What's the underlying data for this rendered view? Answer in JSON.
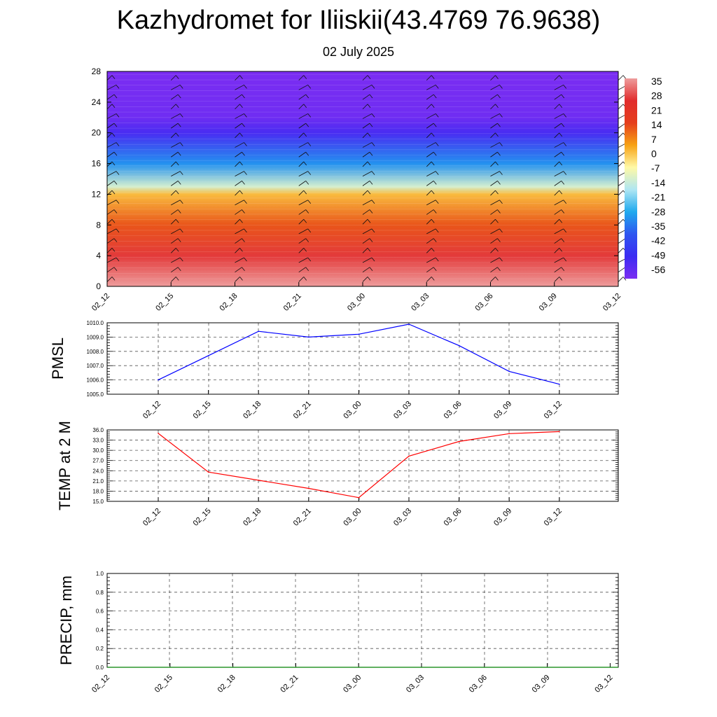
{
  "header": {
    "title": "Kazhydromet for Iliiskii(43.4769 76.9638)",
    "subtitle": "02 July 2025"
  },
  "chart_data": [
    {
      "type": "heatmap",
      "panel": "temperature-cross-section",
      "title": "",
      "ylabel": "",
      "x_ticks": [
        "02_12",
        "02_15",
        "02_18",
        "02_21",
        "03_00",
        "03_03",
        "03_06",
        "03_09",
        "03_12"
      ],
      "y_ticks": [
        0,
        4,
        8,
        12,
        16,
        20,
        24,
        28
      ],
      "ylim": [
        0,
        28
      ],
      "colorbar_labels": [
        35,
        28,
        21,
        14,
        7,
        0,
        -7,
        -14,
        -21,
        -28,
        -35,
        -42,
        -49,
        -56
      ],
      "colors": [
        "#ee9c9c",
        "#e12c2c",
        "#e53e1c",
        "#f7a214",
        "#fff9a6",
        "#aee6f3",
        "#1fa9ee",
        "#2e55f0",
        "#3b2cf2",
        "#7b2df2"
      ],
      "band_profile": [
        {
          "y": 0,
          "value": 35
        },
        {
          "y": 4,
          "value": 26
        },
        {
          "y": 8,
          "value": 12
        },
        {
          "y": 12,
          "value": 1
        },
        {
          "y": 13,
          "value": -12
        },
        {
          "y": 16,
          "value": -30
        },
        {
          "y": 20,
          "value": -50
        },
        {
          "y": 22,
          "value": -56
        },
        {
          "y": 28,
          "value": -58
        }
      ],
      "wind_barbs": true
    },
    {
      "type": "line",
      "panel": "pmsl",
      "ylabel": "PMSL",
      "x": [
        "02_12",
        "02_15",
        "02_18",
        "02_21",
        "03_00",
        "03_03",
        "03_06",
        "03_09",
        "03_12"
      ],
      "series": [
        {
          "values": [
            1006.0,
            1007.7,
            1009.4,
            1009.0,
            1009.2,
            1009.9,
            1008.4,
            1006.6,
            1005.7
          ]
        }
      ],
      "ylim": [
        1005.0,
        1010.0
      ],
      "y_ticks": [
        1005.0,
        1006.0,
        1007.0,
        1008.0,
        1009.0,
        1010.0
      ],
      "line_color": "#0000ff",
      "grid": true
    },
    {
      "type": "line",
      "panel": "temp2m",
      "ylabel": "TEMP at 2 M",
      "x": [
        "02_12",
        "02_15",
        "02_18",
        "02_21",
        "03_00",
        "03_03",
        "03_06",
        "03_09",
        "03_12"
      ],
      "series": [
        {
          "values": [
            35.0,
            23.6,
            21.2,
            18.8,
            16.1,
            28.3,
            32.6,
            34.9,
            35.5
          ]
        }
      ],
      "ylim": [
        15.0,
        36.0
      ],
      "y_ticks": [
        15.0,
        18.0,
        21.0,
        24.0,
        27.0,
        30.0,
        33.0,
        36.0
      ],
      "line_color": "#ff0000",
      "grid": true
    },
    {
      "type": "line",
      "panel": "precip",
      "ylabel": "PRECIP, mm",
      "x": [
        "02_12",
        "02_15",
        "02_18",
        "02_21",
        "03_00",
        "03_03",
        "03_06",
        "03_09",
        "03_12"
      ],
      "series": [
        {
          "values": [
            0,
            0,
            0,
            0,
            0,
            0,
            0,
            0,
            0
          ]
        }
      ],
      "ylim": [
        0.0,
        1.0
      ],
      "y_ticks": [
        0.0,
        0.2,
        0.4,
        0.6,
        0.8,
        1.0
      ],
      "line_color": "#008000",
      "grid": true
    }
  ]
}
